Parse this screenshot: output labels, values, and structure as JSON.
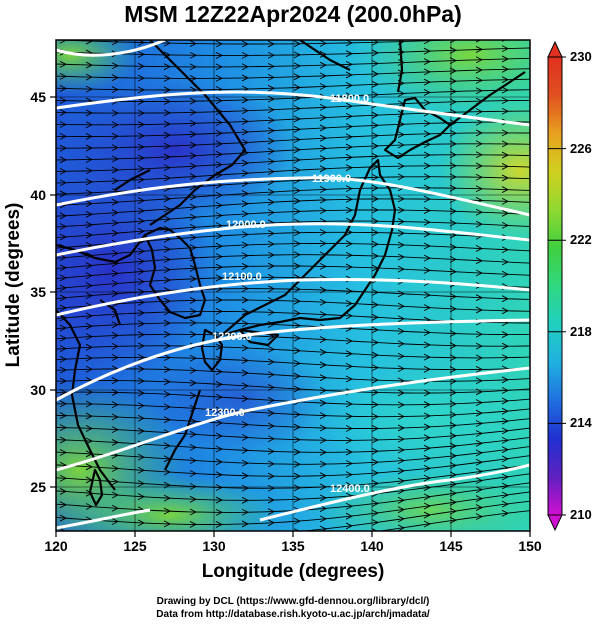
{
  "title": "MSM 12Z22Apr2024 (200.0hPa)",
  "x_axis": {
    "label": "Longitude (degrees)",
    "ticks": [
      "120",
      "125",
      "130",
      "135",
      "140",
      "145",
      "150"
    ],
    "range": [
      120,
      150
    ]
  },
  "y_axis": {
    "label": "Latitude (degrees)",
    "ticks": [
      "25",
      "30",
      "35",
      "40",
      "45"
    ],
    "range": [
      22.4,
      47.6
    ]
  },
  "colorbar": {
    "ticks": [
      "210",
      "214",
      "218",
      "222",
      "226",
      "230"
    ],
    "range": [
      210,
      230
    ],
    "colors": [
      "#d010d0",
      "#6020c0",
      "#2030d0",
      "#2070e0",
      "#20b0e0",
      "#20d0c0",
      "#30d880",
      "#40d040",
      "#90d830",
      "#d0d020",
      "#e8a020",
      "#e05020",
      "#e03020"
    ]
  },
  "contours": [
    {
      "label": "11800.0"
    },
    {
      "label": "11900.0"
    },
    {
      "label": "12000.0"
    },
    {
      "label": "12100.0"
    },
    {
      "label": "12200.0"
    },
    {
      "label": "12300.0"
    },
    {
      "label": "12400.0"
    }
  ],
  "credits": [
    "Drawing by DCL (https://www.gfd-dennou.org/library/dcl/)",
    "Data from http://database.rish.kyoto-u.ac.jp/arch/jmadata/"
  ]
}
